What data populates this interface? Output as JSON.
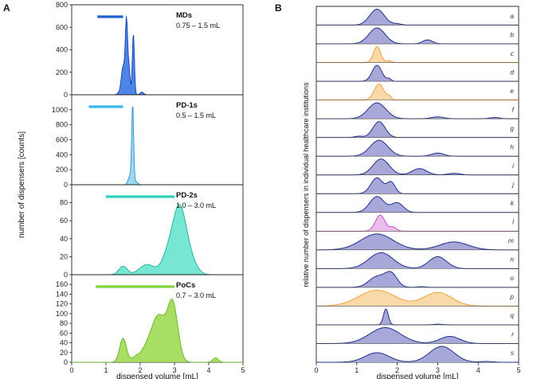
{
  "panel_labels": {
    "a": "A",
    "b": "B"
  },
  "chart_data": [
    {
      "type": "area",
      "id": "A",
      "ylabel": "number of dispensers [counts]",
      "xlabel": "dispensed volume [mL]",
      "xlim": [
        0,
        5
      ],
      "xticks": [
        0,
        1,
        2,
        3,
        4,
        5
      ],
      "subplots": [
        {
          "title": "MDs",
          "range_label": "0.75 – 1.5 mL",
          "range": [
            0.75,
            1.5
          ],
          "fill": "#2f6fe0",
          "stroke": "#1240b0",
          "bar": "#1f5fd0",
          "ylim": [
            0,
            800
          ],
          "yticks": [
            0,
            200,
            400,
            600,
            800
          ],
          "peaks": [
            [
              1.6,
              700,
              0.035
            ],
            [
              1.8,
              580,
              0.03
            ],
            [
              1.5,
              260,
              0.05
            ],
            [
              1.68,
              220,
              0.03
            ],
            [
              1.4,
              20,
              0.06
            ],
            [
              2.05,
              25,
              0.05
            ]
          ]
        },
        {
          "title": "PD-1s",
          "range_label": "0.5 – 1.5 mL",
          "range": [
            0.5,
            1.5
          ],
          "fill": "#8ecfee",
          "stroke": "#2a8ec8",
          "bar": "#38b6ee",
          "ylim": [
            0,
            1200
          ],
          "yticks": [
            0,
            200,
            400,
            600,
            800,
            1000
          ],
          "peaks": [
            [
              1.78,
              1080,
              0.028
            ],
            [
              1.7,
              120,
              0.05
            ],
            [
              1.88,
              40,
              0.05
            ]
          ]
        },
        {
          "title": "PD-2s",
          "range_label": "1.0 – 3.0 mL",
          "range": [
            1.0,
            3.0
          ],
          "fill": "#5fe3cc",
          "stroke": "#1fae96",
          "bar": "#2dd0bb",
          "ylim": [
            0,
            100
          ],
          "yticks": [
            0,
            20,
            40,
            60,
            80
          ],
          "peaks": [
            [
              3.15,
              78,
              0.2
            ],
            [
              2.8,
              20,
              0.18
            ],
            [
              2.2,
              12,
              0.22
            ],
            [
              1.5,
              10,
              0.12
            ],
            [
              3.5,
              12,
              0.18
            ]
          ]
        },
        {
          "title": "PoCs",
          "range_label": "0.7 – 3.0 mL",
          "range": [
            0.7,
            3.0
          ],
          "fill": "#9ad84a",
          "stroke": "#62b51c",
          "bar": "#7fd53a",
          "ylim": [
            0,
            180
          ],
          "yticks": [
            0,
            20,
            40,
            60,
            80,
            100,
            120,
            140,
            160
          ],
          "peaks": [
            [
              2.95,
              130,
              0.15
            ],
            [
              2.55,
              100,
              0.2
            ],
            [
              2.2,
              30,
              0.2
            ],
            [
              1.5,
              55,
              0.1
            ],
            [
              4.2,
              10,
              0.08
            ],
            [
              1.85,
              8,
              0.1
            ]
          ]
        }
      ]
    },
    {
      "type": "area",
      "id": "B",
      "ylabel": "relative number of dispensers in individual healthcare institutions",
      "xlabel": "dispensed volume [mL]",
      "xlim": [
        0,
        5
      ],
      "xticks": [
        0,
        1,
        2,
        3,
        4,
        5
      ],
      "series": [
        {
          "label": "a",
          "kind": "blue",
          "peaks": [
            [
              1.5,
              1.0,
              0.18
            ],
            [
              2.0,
              0.08,
              0.1
            ]
          ]
        },
        {
          "label": "b",
          "kind": "blue",
          "peaks": [
            [
              1.5,
              1.0,
              0.2
            ],
            [
              2.75,
              0.25,
              0.12
            ]
          ]
        },
        {
          "label": "c",
          "kind": "orange",
          "peaks": [
            [
              1.5,
              1.0,
              0.09
            ],
            [
              1.8,
              0.12,
              0.06
            ]
          ]
        },
        {
          "label": "d",
          "kind": "blue",
          "peaks": [
            [
              1.5,
              1.0,
              0.12
            ],
            [
              1.8,
              0.15,
              0.05
            ]
          ]
        },
        {
          "label": "e",
          "kind": "orange",
          "peaks": [
            [
              1.55,
              1.0,
              0.12
            ],
            [
              1.8,
              0.2,
              0.05
            ]
          ]
        },
        {
          "label": "f",
          "kind": "blue",
          "peaks": [
            [
              1.5,
              1.0,
              0.22
            ],
            [
              3.0,
              0.12,
              0.15
            ],
            [
              4.4,
              0.08,
              0.12
            ]
          ]
        },
        {
          "label": "g",
          "kind": "blue",
          "peaks": [
            [
              1.55,
              1.0,
              0.15
            ],
            [
              1.05,
              0.08,
              0.1
            ]
          ]
        },
        {
          "label": "h",
          "kind": "blue",
          "peaks": [
            [
              1.55,
              1.0,
              0.22
            ],
            [
              3.0,
              0.2,
              0.15
            ]
          ]
        },
        {
          "label": "i",
          "kind": "blue",
          "peaks": [
            [
              1.6,
              1.0,
              0.2
            ],
            [
              2.55,
              0.4,
              0.18
            ],
            [
              3.4,
              0.1,
              0.15
            ]
          ]
        },
        {
          "label": "j",
          "kind": "blue",
          "peaks": [
            [
              1.5,
              1.0,
              0.15
            ],
            [
              1.85,
              0.7,
              0.1
            ]
          ]
        },
        {
          "label": "k",
          "kind": "blue",
          "peaks": [
            [
              1.5,
              1.0,
              0.18
            ],
            [
              2.0,
              0.6,
              0.15
            ]
          ]
        },
        {
          "label": "l",
          "kind": "pink",
          "peaks": [
            [
              1.58,
              1.0,
              0.12
            ],
            [
              1.9,
              0.25,
              0.08
            ]
          ]
        },
        {
          "label": "m",
          "kind": "blue",
          "peaks": [
            [
              1.5,
              1.0,
              0.4
            ],
            [
              3.4,
              0.5,
              0.35
            ]
          ]
        },
        {
          "label": "n",
          "kind": "blue",
          "peaks": [
            [
              1.6,
              1.0,
              0.3
            ],
            [
              3.0,
              0.75,
              0.22
            ]
          ]
        },
        {
          "label": "o",
          "kind": "blue",
          "peaks": [
            [
              1.5,
              0.8,
              0.2
            ],
            [
              1.85,
              1.0,
              0.15
            ],
            [
              2.6,
              0.05,
              0.1
            ]
          ]
        },
        {
          "label": "p",
          "kind": "orange",
          "peaks": [
            [
              1.5,
              1.0,
              0.45
            ],
            [
              3.0,
              0.85,
              0.35
            ]
          ]
        },
        {
          "label": "q",
          "kind": "blue",
          "peaks": [
            [
              1.72,
              1.0,
              0.06
            ],
            [
              3.0,
              0.04,
              0.1
            ]
          ]
        },
        {
          "label": "r",
          "kind": "blue",
          "peaks": [
            [
              1.7,
              1.0,
              0.38
            ],
            [
              3.3,
              0.45,
              0.25
            ]
          ]
        },
        {
          "label": "s",
          "kind": "blue",
          "peaks": [
            [
              1.5,
              0.6,
              0.3
            ],
            [
              3.1,
              1.0,
              0.3
            ],
            [
              4.2,
              0.05,
              0.15
            ]
          ]
        }
      ],
      "colors": {
        "blue": {
          "fill": "#a8a8d8",
          "stroke": "#1e2f8a"
        },
        "orange": {
          "fill": "#fad9a8",
          "stroke": "#f0a040"
        },
        "pink": {
          "fill": "#ecbcec",
          "stroke": "#c050c0"
        }
      }
    }
  ]
}
